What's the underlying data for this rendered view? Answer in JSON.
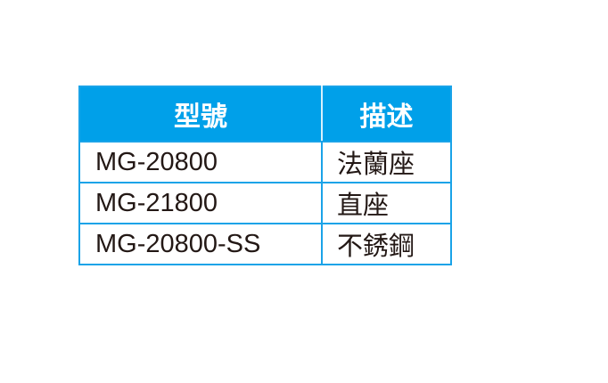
{
  "table": {
    "headers": [
      "型號",
      "描述"
    ],
    "rows": [
      [
        "MG-20800",
        "法蘭座"
      ],
      [
        "MG-21800",
        "直座"
      ],
      [
        "MG-20800-SS",
        "不銹鋼"
      ]
    ],
    "header_color": "#00a0e9",
    "border_color": "#1aa3e8"
  }
}
